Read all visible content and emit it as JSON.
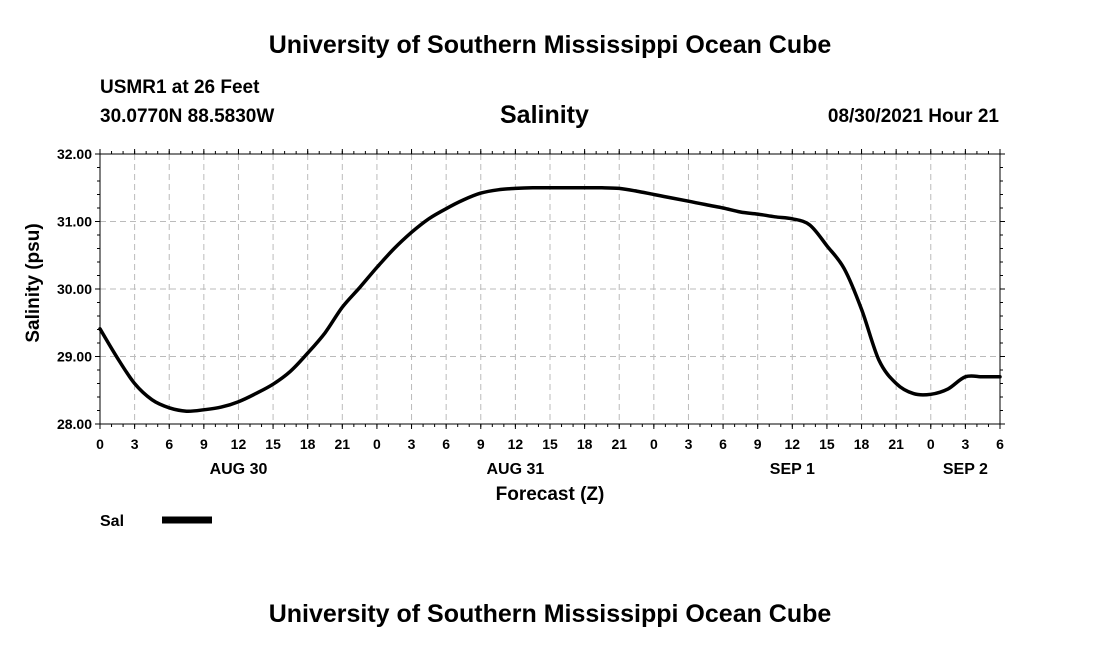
{
  "header": {
    "title": "University of Southern Mississippi Ocean Cube",
    "station": "USMR1 at 26 Feet",
    "coords": "30.0770N  88.5830W",
    "timestamp": "08/30/2021 Hour 21"
  },
  "footer": {
    "title": "University of Southern Mississippi Ocean Cube"
  },
  "chart_data": {
    "type": "line",
    "title": "Salinity",
    "xlabel": "Forecast (Z)",
    "ylabel": "Salinity (psu)",
    "ylim": [
      28.0,
      32.0
    ],
    "yticks": [
      "28.00",
      "29.00",
      "30.00",
      "31.00",
      "32.00"
    ],
    "xlim": [
      0,
      78
    ],
    "xtick_hours": [
      0,
      3,
      6,
      9,
      12,
      15,
      18,
      21,
      24,
      27,
      30,
      33,
      36,
      39,
      42,
      45,
      48,
      51,
      54,
      57,
      60,
      63,
      66,
      69,
      72,
      75,
      78
    ],
    "xtick_labels": [
      "0",
      "3",
      "6",
      "9",
      "12",
      "15",
      "18",
      "21",
      "0",
      "3",
      "6",
      "9",
      "12",
      "15",
      "18",
      "21",
      "0",
      "3",
      "6",
      "9",
      "12",
      "15",
      "18",
      "21",
      "0",
      "3",
      "6"
    ],
    "date_labels": [
      {
        "hour": 12,
        "label": "AUG 30"
      },
      {
        "hour": 36,
        "label": "AUG 31"
      },
      {
        "hour": 60,
        "label": "SEP 1"
      },
      {
        "hour": 75,
        "label": "SEP 2"
      }
    ],
    "grid": true,
    "legend": {
      "position": "bottom-left",
      "entries": [
        "Sal"
      ]
    },
    "series": [
      {
        "name": "Sal",
        "x": [
          0,
          1.5,
          3,
          4.5,
          6,
          7.5,
          9,
          10.5,
          12,
          13.5,
          15,
          16.5,
          18,
          19.5,
          21,
          22.5,
          24,
          25.5,
          27,
          28.5,
          30,
          31.5,
          33,
          34.5,
          36,
          37.5,
          39,
          40.5,
          42,
          43.5,
          45,
          46.5,
          48,
          49.5,
          51,
          52.5,
          54,
          55.5,
          57,
          58.5,
          60,
          61.5,
          63,
          64.5,
          66,
          67.5,
          69,
          70.5,
          72,
          73.5,
          75,
          76.5,
          78
        ],
        "values": [
          29.41,
          28.98,
          28.6,
          28.36,
          28.24,
          28.19,
          28.21,
          28.25,
          28.33,
          28.45,
          28.59,
          28.78,
          29.05,
          29.35,
          29.73,
          30.02,
          30.32,
          30.6,
          30.84,
          31.04,
          31.19,
          31.32,
          31.42,
          31.47,
          31.49,
          31.5,
          31.5,
          31.5,
          31.5,
          31.5,
          31.49,
          31.45,
          31.4,
          31.35,
          31.3,
          31.25,
          31.2,
          31.14,
          31.11,
          31.07,
          31.04,
          30.95,
          30.64,
          30.3,
          29.7,
          28.95,
          28.6,
          28.45,
          28.44,
          28.52,
          28.7,
          28.7,
          28.7
        ]
      }
    ]
  }
}
